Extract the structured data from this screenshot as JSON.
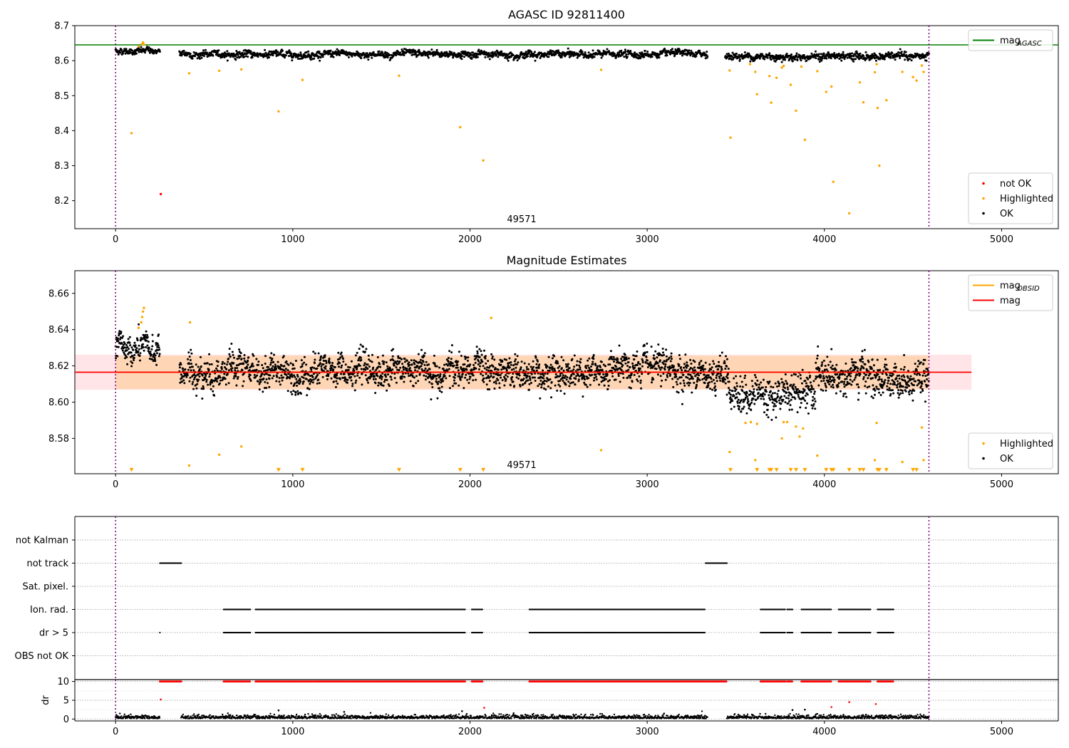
{
  "chart_data": [
    {
      "type": "scatter",
      "title": "AGASC ID 92811400",
      "xlim": [
        -230,
        5320
      ],
      "ylim": [
        8.12,
        8.7
      ],
      "xticks": [
        0,
        1000,
        2000,
        3000,
        4000,
        5000
      ],
      "yticks": [
        8.2,
        8.3,
        8.4,
        8.5,
        8.6,
        8.7
      ],
      "ytick_labels": [
        "8.2",
        "8.3",
        "8.4",
        "8.5",
        "8.6",
        "8.7"
      ],
      "grid": false,
      "annotation": "49571",
      "vlines": [
        0,
        4590
      ],
      "hlines": [
        {
          "y": 8.645,
          "color": "#008000",
          "x_from": -230,
          "x_to": 5320
        }
      ],
      "legends": [
        {
          "placement": "top-right",
          "entries": [
            {
              "label": "mag",
              "sub": "AGASC",
              "kind": "line",
              "color": "#008000"
            }
          ]
        },
        {
          "placement": "bottom-right",
          "entries": [
            {
              "label": "not OK",
              "kind": "dot",
              "color": "#ff0000"
            },
            {
              "label": "Highlighted",
              "kind": "dot",
              "color": "#ffa500"
            },
            {
              "label": "OK",
              "kind": "dot",
              "color": "#000000"
            }
          ]
        }
      ],
      "series": [
        {
          "name": "OK",
          "color": "#000000",
          "pattern": "ok_band",
          "segments": [
            {
              "x": [
                0,
                250
              ],
              "base": 8.628,
              "spread": 0.008
            },
            {
              "x": [
                360,
                3340
              ],
              "base": 8.618,
              "spread": 0.009
            },
            {
              "x": [
                3440,
                4590
              ],
              "base": 8.612,
              "spread": 0.01
            }
          ]
        },
        {
          "name": "Highlighted",
          "color": "#ffa500",
          "points": [
            [
              90,
              8.393
            ],
            [
              130,
              8.641
            ],
            [
              150,
              8.648
            ],
            [
              155,
              8.652
            ],
            [
              160,
              8.646
            ],
            [
              415,
              8.564
            ],
            [
              585,
              8.571
            ],
            [
              710,
              8.575
            ],
            [
              920,
              8.455
            ],
            [
              1055,
              8.545
            ],
            [
              1600,
              8.557
            ],
            [
              1945,
              8.41
            ],
            [
              2075,
              8.315
            ],
            [
              2740,
              8.574
            ],
            [
              3465,
              8.572
            ],
            [
              3470,
              8.38
            ],
            [
              3580,
              8.59
            ],
            [
              3610,
              8.568
            ],
            [
              3620,
              8.504
            ],
            [
              3690,
              8.556
            ],
            [
              3700,
              8.48
            ],
            [
              3730,
              8.551
            ],
            [
              3760,
              8.58
            ],
            [
              3770,
              8.585
            ],
            [
              3810,
              8.531
            ],
            [
              3840,
              8.457
            ],
            [
              3870,
              8.583
            ],
            [
              3890,
              8.374
            ],
            [
              3960,
              8.57
            ],
            [
              4010,
              8.511
            ],
            [
              4040,
              8.526
            ],
            [
              4050,
              8.254
            ],
            [
              4200,
              8.538
            ],
            [
              4220,
              8.481
            ],
            [
              4285,
              8.567
            ],
            [
              4295,
              8.59
            ],
            [
              4300,
              8.465
            ],
            [
              4310,
              8.3
            ],
            [
              4350,
              8.487
            ],
            [
              4140,
              8.164
            ],
            [
              4440,
              8.568
            ],
            [
              4500,
              8.553
            ],
            [
              4520,
              8.543
            ],
            [
              4550,
              8.586
            ],
            [
              4560,
              8.568
            ]
          ]
        },
        {
          "name": "not OK",
          "color": "#ff0000",
          "points": [
            [
              255,
              8.219
            ]
          ]
        }
      ]
    },
    {
      "type": "scatter",
      "title": "Magnitude Estimates",
      "xlim": [
        -230,
        5320
      ],
      "ylim": [
        8.5605,
        8.6725
      ],
      "xticks": [
        0,
        1000,
        2000,
        3000,
        4000,
        5000
      ],
      "yticks": [
        8.58,
        8.6,
        8.62,
        8.64,
        8.66
      ],
      "ytick_labels": [
        "8.58",
        "8.60",
        "8.62",
        "8.64",
        "8.66"
      ],
      "grid": false,
      "annotation": "49571",
      "vlines": [
        0,
        4590
      ],
      "bands": [
        {
          "y": [
            8.6068,
            8.6262
          ],
          "color": "#ff6b81",
          "opacity": 0.18,
          "x_from": -230,
          "x_to": 4830
        },
        {
          "y": [
            8.6072,
            8.6256
          ],
          "color": "#ffa500",
          "opacity": 0.22,
          "x_from": 0,
          "x_to": 4590
        }
      ],
      "hlines": [
        {
          "y": 8.6165,
          "color": "#ffa500",
          "x_from": 0,
          "x_to": 4590
        },
        {
          "y": 8.6165,
          "color": "#ff0000",
          "x_from": -230,
          "x_to": 4830
        }
      ],
      "legends": [
        {
          "placement": "top-right",
          "entries": [
            {
              "label": "mag",
              "sub": "OBSID",
              "kind": "line",
              "color": "#ffa500"
            },
            {
              "label": "mag",
              "kind": "line",
              "color": "#ff0000"
            }
          ]
        },
        {
          "placement": "bottom-right",
          "entries": [
            {
              "label": "Highlighted",
              "kind": "dot",
              "color": "#ffa500"
            },
            {
              "label": "OK",
              "kind": "dot",
              "color": "#000000"
            }
          ]
        }
      ],
      "series": [
        {
          "name": "OK",
          "color": "#000000",
          "pattern": "ok_band",
          "segments": [
            {
              "x": [
                0,
                250
              ],
              "base": 8.628,
              "spread": 0.007
            },
            {
              "x": [
                360,
                3460
              ],
              "base": 8.617,
              "spread": 0.008
            },
            {
              "x": [
                3460,
                3950
              ],
              "base": 8.605,
              "spread": 0.009
            },
            {
              "x": [
                3950,
                4590
              ],
              "base": 8.614,
              "spread": 0.009
            }
          ]
        },
        {
          "name": "Highlighted",
          "color": "#ffa500",
          "points": [
            [
              130,
              8.641
            ],
            [
              145,
              8.644
            ],
            [
              150,
              8.647
            ],
            [
              155,
              8.65
            ],
            [
              160,
              8.652
            ],
            [
              415,
              8.565
            ],
            [
              420,
              8.644
            ],
            [
              585,
              8.571
            ],
            [
              710,
              8.5755
            ],
            [
              2120,
              8.6465
            ],
            [
              2740,
              8.5735
            ],
            [
              3465,
              8.5725
            ],
            [
              3555,
              8.5885
            ],
            [
              3585,
              8.589
            ],
            [
              3610,
              8.568
            ],
            [
              3620,
              8.588
            ],
            [
              3760,
              8.58
            ],
            [
              3770,
              8.589
            ],
            [
              3790,
              8.589
            ],
            [
              3840,
              8.5865
            ],
            [
              3860,
              8.581
            ],
            [
              3880,
              8.5855
            ],
            [
              3960,
              8.5705
            ],
            [
              4285,
              8.568
            ],
            [
              4295,
              8.5885
            ],
            [
              4440,
              8.567
            ],
            [
              4550,
              8.586
            ],
            [
              4560,
              8.568
            ]
          ]
        },
        {
          "name": "Highlighted (below range)",
          "color": "#ffa500",
          "marker": "triangle-down",
          "y": 8.5625,
          "x_points": [
            90,
            920,
            1055,
            1600,
            1945,
            2075,
            3470,
            3620,
            3690,
            3700,
            3730,
            3810,
            3840,
            3890,
            4010,
            4040,
            4050,
            4140,
            4200,
            4220,
            4300,
            4310,
            4350,
            4500,
            4520
          ]
        }
      ]
    },
    {
      "type": "scatter",
      "title": "",
      "xlim": [
        -230,
        5320
      ],
      "vlines": [
        0,
        4590
      ],
      "categories": [
        "not Kalman",
        "not track",
        "Sat. pixel.",
        "Ion. rad.",
        "dr > 5",
        "OBS not OK"
      ],
      "grid": true,
      "flag_segments": {
        "not Kalman": [],
        "not track": [
          [
            250,
            370
          ],
          [
            3330,
            3450
          ]
        ],
        "Sat. pixel.": [],
        "Ion. rad.": [
          [
            610,
            760
          ],
          [
            790,
            1115
          ],
          [
            1120,
            1975
          ],
          [
            2010,
            2070
          ],
          [
            2335,
            3330
          ],
          [
            3640,
            3780
          ],
          [
            3790,
            3820
          ],
          [
            3870,
            4040
          ],
          [
            4080,
            4260
          ],
          [
            4300,
            4390
          ]
        ],
        "dr > 5": [
          [
            250,
            254
          ],
          [
            610,
            760
          ],
          [
            790,
            1115
          ],
          [
            1120,
            1975
          ],
          [
            2010,
            2070
          ],
          [
            2335,
            3330
          ],
          [
            3640,
            3780
          ],
          [
            3790,
            3820
          ],
          [
            3870,
            4040
          ],
          [
            4080,
            4260
          ],
          [
            4300,
            4390
          ]
        ],
        "OBS not OK": []
      }
    },
    {
      "type": "scatter",
      "ylabel": "dr",
      "xlim": [
        -230,
        5320
      ],
      "ylim": [
        -0.5,
        10.5
      ],
      "xticks": [
        0,
        1000,
        2000,
        3000,
        4000,
        5000
      ],
      "yticks": [
        0,
        5,
        10
      ],
      "ytick_labels": [
        "0",
        "5",
        "10"
      ],
      "minor_yticks": [
        2.5,
        7.5
      ],
      "grid": true,
      "vlines": [
        0,
        4590
      ],
      "series": [
        {
          "name": "dr capped",
          "color": "#ff0000",
          "y": 10,
          "segments": [
            [
              250,
              370
            ],
            [
              610,
              760
            ],
            [
              790,
              1115
            ],
            [
              1120,
              1975
            ],
            [
              2010,
              2070
            ],
            [
              2335,
              3450
            ],
            [
              3640,
              3780
            ],
            [
              3790,
              3820
            ],
            [
              3870,
              4040
            ],
            [
              4080,
              4260
            ],
            [
              4300,
              4390
            ]
          ]
        },
        {
          "name": "dr",
          "color": "#000000",
          "pattern": "low_band",
          "segments": [
            [
              0,
              250
            ],
            [
              370,
              1300
            ],
            [
              1300,
              2330
            ],
            [
              2330,
              3340
            ],
            [
              3450,
              4590
            ]
          ]
        },
        {
          "name": "dr outliers",
          "color": "#ff0000",
          "points": [
            [
              255,
              5.2
            ],
            [
              2080,
              3.0
            ],
            [
              4040,
              3.2
            ],
            [
              4140,
              4.5
            ],
            [
              4290,
              4.0
            ]
          ]
        },
        {
          "name": "dr outliers ok",
          "color": "#000000",
          "points": [
            [
              920,
              2.3
            ],
            [
              1955,
              2.1
            ],
            [
              3820,
              2.4
            ],
            [
              1290,
              1.9
            ],
            [
              3890,
              2.5
            ]
          ]
        }
      ]
    }
  ]
}
